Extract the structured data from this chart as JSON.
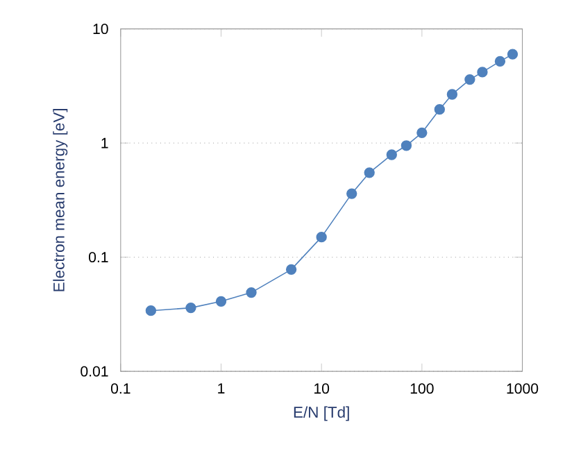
{
  "chart_data": {
    "type": "line",
    "xlabel": "E/N [Td]",
    "ylabel": "Electron mean energy  [eV]",
    "x": [
      0.2,
      0.5,
      1,
      2,
      5,
      10,
      20,
      30,
      50,
      70,
      100,
      150,
      200,
      300,
      400,
      600,
      800
    ],
    "series": [
      {
        "color": "#4f81bd",
        "values": [
          0.034,
          0.036,
          0.041,
          0.049,
          0.078,
          0.15,
          0.36,
          0.55,
          0.79,
          0.95,
          1.23,
          1.97,
          2.67,
          3.6,
          4.18,
          5.2,
          6.0
        ]
      }
    ],
    "log": "xy",
    "xlim": [
      0.1,
      1000
    ],
    "ylim": [
      0.01,
      10
    ],
    "xticks": [
      0.1,
      1,
      10,
      100,
      1000
    ],
    "yticks": [
      0.01,
      0.1,
      1,
      10
    ],
    "grid": "y",
    "marker": "circle",
    "line_style": "solid"
  }
}
